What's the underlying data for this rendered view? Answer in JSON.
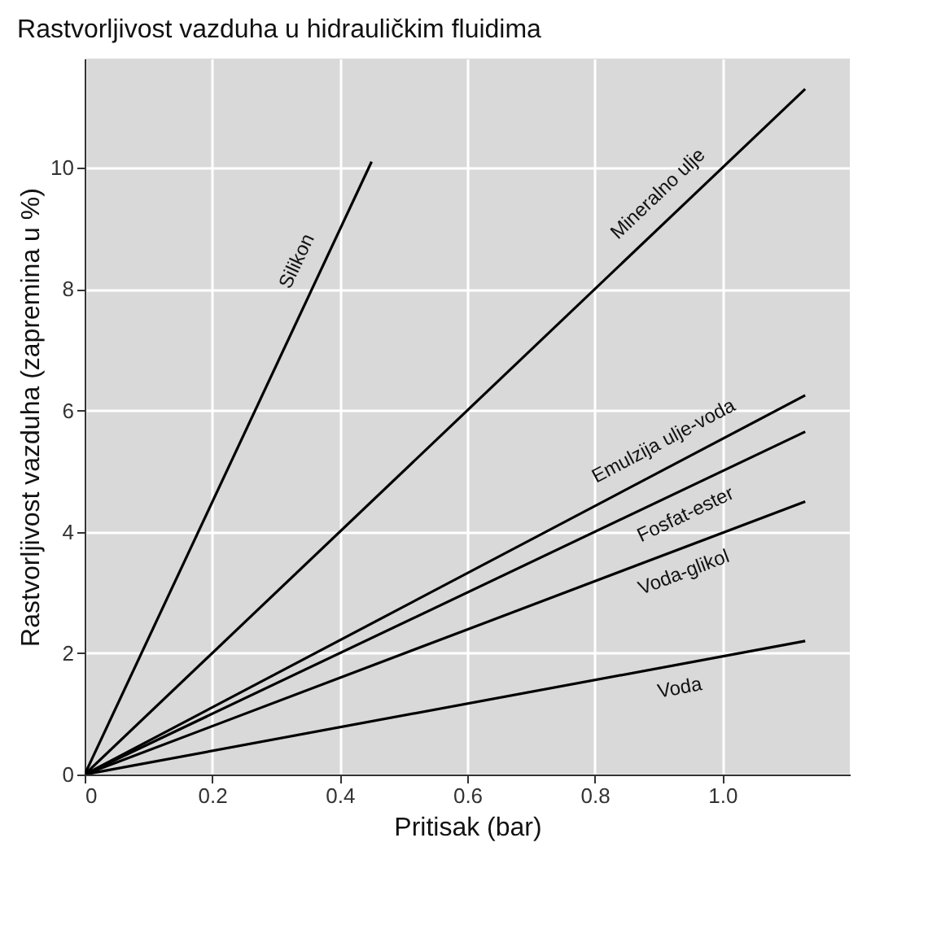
{
  "chart_data": {
    "type": "line",
    "title": "Rastvorljivost vazduha u hidrauličkim fluidima",
    "xlabel": "Pritisak (bar)",
    "ylabel": "Rastvorljivost vazduha (zapremina u %)",
    "xlim": [
      0,
      1.2
    ],
    "ylim": [
      0,
      11.8
    ],
    "xticks": [
      0,
      0.2,
      0.4,
      0.6,
      0.8,
      {
        "value": 1,
        "label": "1.0"
      }
    ],
    "yticks": [
      0,
      2,
      4,
      6,
      8,
      10
    ],
    "grid": true,
    "legend": false,
    "marker": "none",
    "line_style": "solid",
    "series": [
      {
        "name": "Silikon",
        "color": "#000000",
        "x": [
          0,
          0.45
        ],
        "values": [
          0,
          10.1
        ]
      },
      {
        "name": "Mineralno ulje",
        "color": "#000000",
        "x": [
          0,
          1.13
        ],
        "values": [
          0,
          11.3
        ]
      },
      {
        "name": "Emulzija ulje-voda",
        "color": "#000000",
        "x": [
          0,
          1.13
        ],
        "values": [
          0,
          6.25
        ]
      },
      {
        "name": "Fosfat-ester",
        "color": "#000000",
        "x": [
          0,
          1.13
        ],
        "values": [
          0,
          5.65
        ]
      },
      {
        "name": "Voda-glikol",
        "color": "#000000",
        "x": [
          0,
          1.13
        ],
        "values": [
          0,
          4.5
        ]
      },
      {
        "name": "Voda",
        "color": "#000000",
        "x": [
          0,
          1.13
        ],
        "values": [
          0,
          2.2
        ]
      }
    ]
  }
}
